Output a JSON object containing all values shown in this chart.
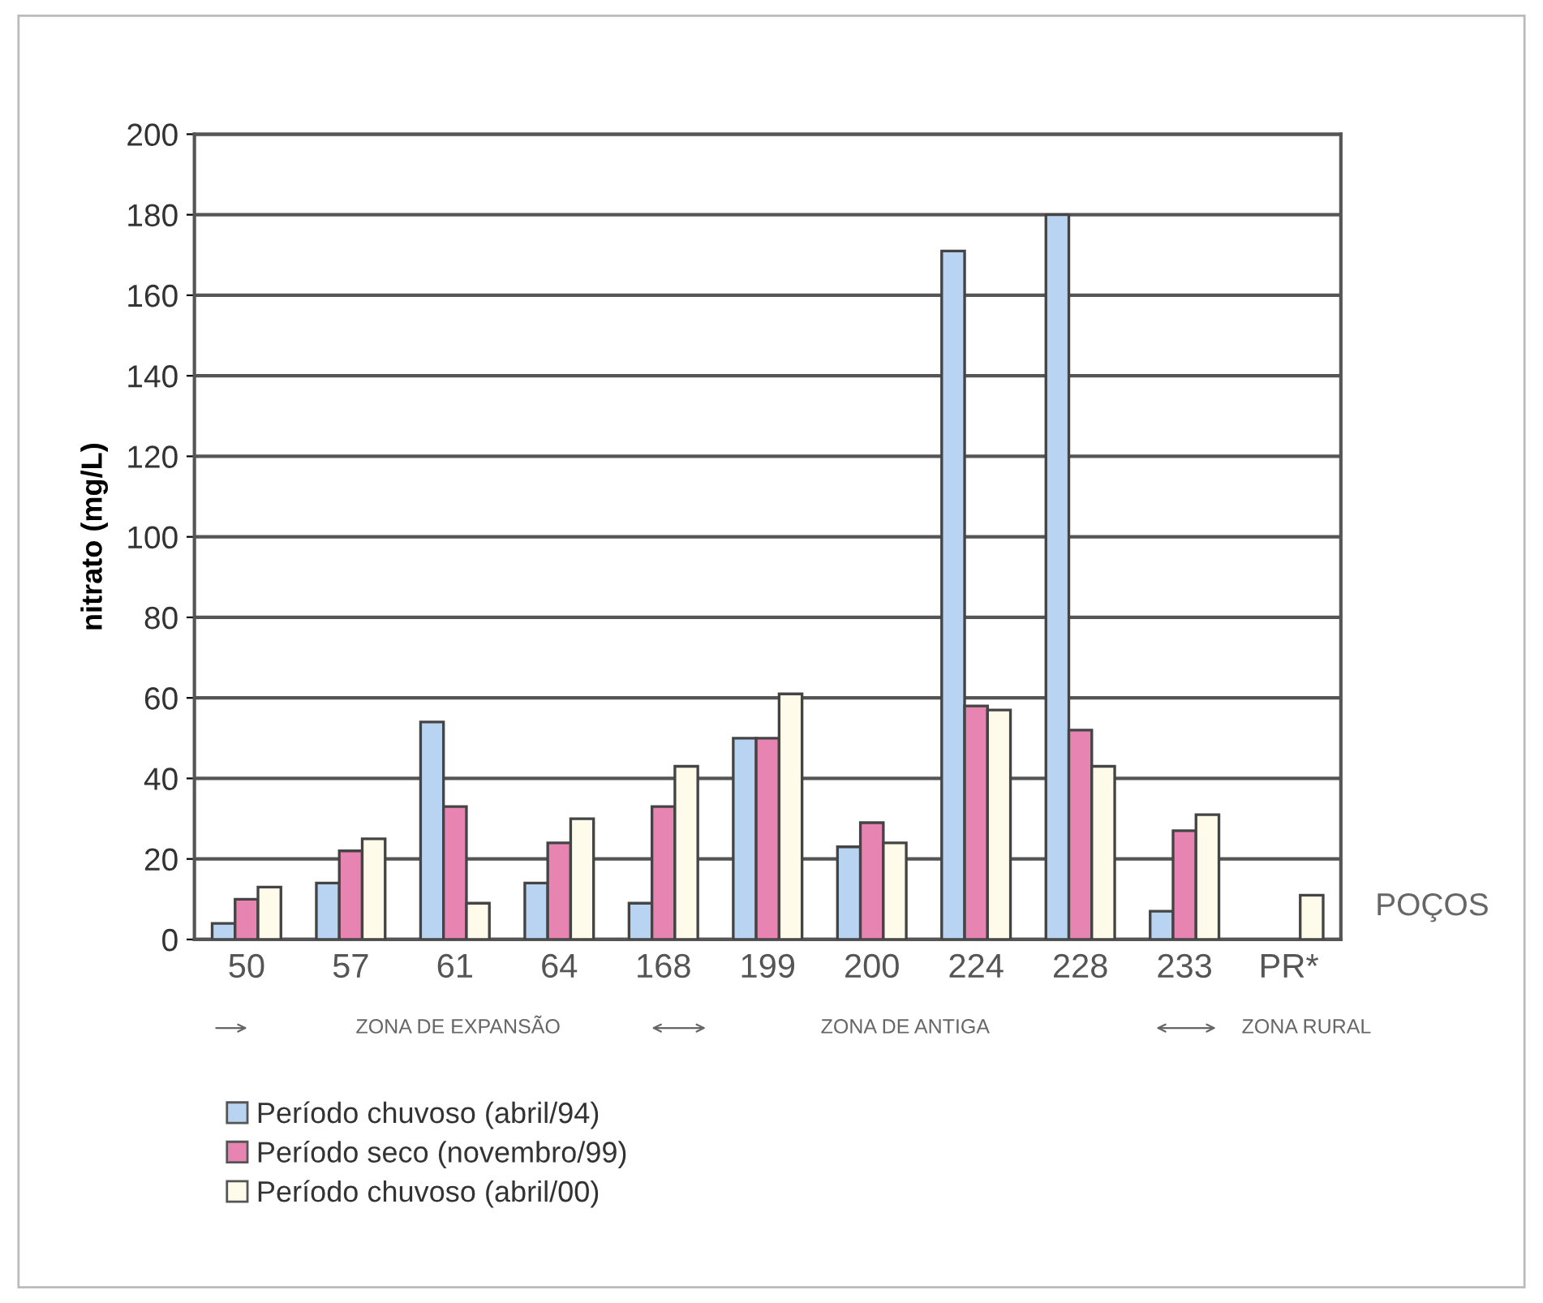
{
  "chart_data": {
    "type": "bar",
    "xlabel": "POÇOS",
    "ylabel": "nitrato (mg/L)",
    "categories": [
      "50",
      "57",
      "61",
      "64",
      "168",
      "199",
      "200",
      "224",
      "228",
      "233",
      "PR*"
    ],
    "series": [
      {
        "name": "Período chuvoso (abril/94)",
        "color": "#b9d3f3",
        "values": [
          4,
          14,
          54,
          14,
          9,
          50,
          23,
          171,
          180,
          7,
          null
        ]
      },
      {
        "name": "Período seco (novembro/99)",
        "color": "#e784b2",
        "values": [
          10,
          22,
          33,
          24,
          33,
          50,
          29,
          58,
          52,
          27,
          null
        ]
      },
      {
        "name": "Período chuvoso (abril/00)",
        "color": "#fffbea",
        "values": [
          13,
          25,
          9,
          30,
          43,
          61,
          24,
          57,
          43,
          31,
          11
        ]
      }
    ],
    "ylim": [
      0,
      200
    ],
    "yticks": [
      0,
      20,
      40,
      60,
      80,
      100,
      120,
      140,
      160,
      180,
      200
    ],
    "grid": "y",
    "legend": "bottom left",
    "annotations": [
      "ZONA DE EXPANSÃO",
      "ZONA DE ANTIGA",
      "ZONA RURAL"
    ]
  }
}
